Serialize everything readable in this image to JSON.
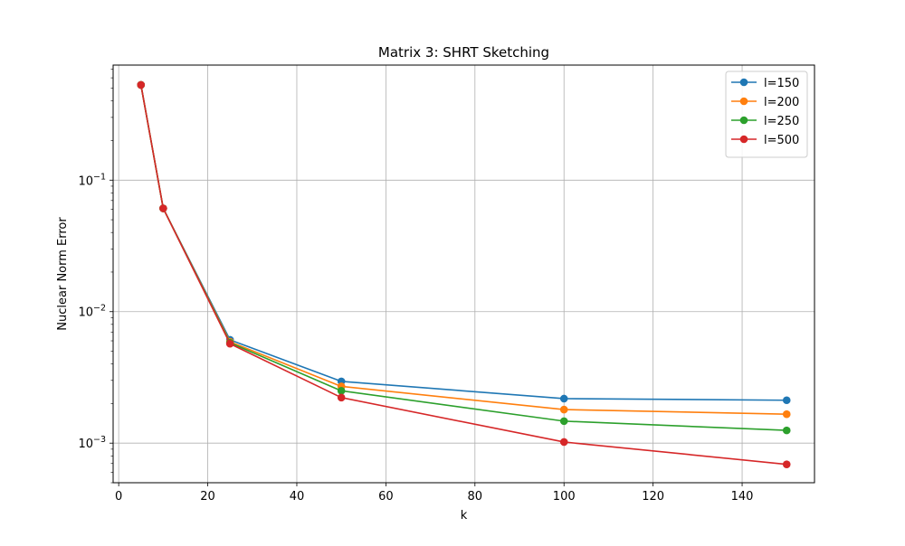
{
  "chart_data": {
    "type": "line",
    "title": "Matrix 3: SHRT Sketching",
    "xlabel": "k",
    "ylabel": "Nuclear Norm Error",
    "yscale": "log",
    "xlim": [
      -1.25,
      156.25
    ],
    "ylim": [
      0.0005,
      0.75
    ],
    "grid": true,
    "legend_position": "top-right",
    "x": [
      5,
      10,
      25,
      50,
      100,
      150
    ],
    "x_ticks": [
      "0",
      "20",
      "40",
      "60",
      "80",
      "100",
      "120",
      "140"
    ],
    "y_ticks": [
      {
        "mantissa": "10",
        "exponent": "−3",
        "value": 0.001
      },
      {
        "mantissa": "10",
        "exponent": "−2",
        "value": 0.01
      },
      {
        "mantissa": "10",
        "exponent": "−1",
        "value": 0.1
      }
    ],
    "series": [
      {
        "name": "l=150",
        "color": "#1f77b4",
        "values": [
          0.53,
          0.061,
          0.0061,
          0.00295,
          0.00218,
          0.00212
        ]
      },
      {
        "name": "l=200",
        "color": "#ff7f0e",
        "values": [
          0.53,
          0.061,
          0.0059,
          0.0027,
          0.0018,
          0.00166
        ]
      },
      {
        "name": "l=250",
        "color": "#2ca02c",
        "values": [
          0.53,
          0.061,
          0.0058,
          0.0025,
          0.00147,
          0.00125
        ]
      },
      {
        "name": "l=500",
        "color": "#d62728",
        "values": [
          0.53,
          0.061,
          0.0057,
          0.00222,
          0.00102,
          0.00069
        ]
      }
    ]
  }
}
